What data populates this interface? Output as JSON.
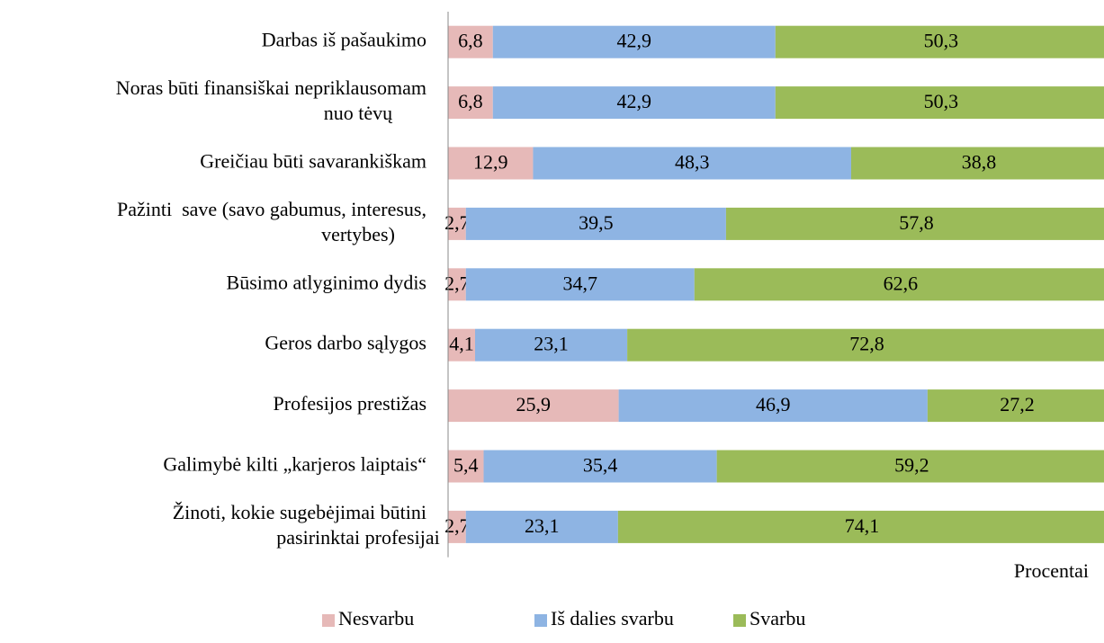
{
  "chart_data": {
    "type": "stacked-barh",
    "categories": [
      "Darbas iš pašaukimo",
      "Noras būti finansiškai nepriklausomam\nnuo tėvų",
      "Greičiau būti savarankiškam",
      "Pažinti  save (savo gabumus, interesus,\nvertybes)",
      "Būsimo atlyginimo dydis",
      "Geros darbo sąlygos",
      "Profesijos prestižas",
      "Galimybė kilti „karjeros laiptais“",
      "Žinoti, kokie sugebėjimai būtini\npasirinktai profesijai"
    ],
    "series": [
      {
        "name": "Nesvarbu",
        "color": "#e6b9b8",
        "values": [
          6.8,
          6.8,
          12.9,
          2.7,
          2.7,
          4.1,
          25.9,
          5.4,
          2.7
        ],
        "value_labels": [
          "6,8",
          "6,8",
          "12,9",
          "2,7",
          "2,7",
          "4,1",
          "25,9",
          "5,4",
          "2,7"
        ]
      },
      {
        "name": "Iš dalies svarbu",
        "color": "#8eb4e3",
        "values": [
          42.9,
          42.9,
          48.3,
          39.5,
          34.7,
          23.1,
          46.9,
          35.4,
          23.1
        ],
        "value_labels": [
          "42,9",
          "42,9",
          "48,3",
          "39,5",
          "34,7",
          "23,1",
          "46,9",
          "35,4",
          "23,1"
        ]
      },
      {
        "name": "Svarbu",
        "color": "#9bbb59",
        "values": [
          50.3,
          50.3,
          38.8,
          57.8,
          62.6,
          72.8,
          27.2,
          59.2,
          74.1
        ],
        "value_labels": [
          "50,3",
          "50,3",
          "38,8",
          "57,8",
          "62,6",
          "72,8",
          "27,2",
          "59,2",
          "74,1"
        ]
      }
    ],
    "xlabel": "Procentai",
    "xlim": [
      0,
      100
    ],
    "legend": "bottom"
  }
}
